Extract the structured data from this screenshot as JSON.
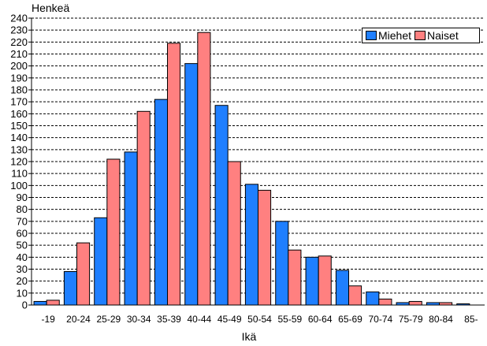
{
  "chart_data": {
    "type": "bar",
    "ylabel": "Henkeä",
    "xlabel": "Ikä",
    "categories": [
      "-19",
      "20-24",
      "25-29",
      "30-34",
      "35-39",
      "40-44",
      "45-49",
      "50-54",
      "55-59",
      "60-64",
      "65-69",
      "70-74",
      "75-79",
      "80-84",
      "85-"
    ],
    "series": [
      {
        "name": "Miehet",
        "color": "#1f7fff",
        "values": [
          3,
          28,
          73,
          128,
          172,
          202,
          167,
          101,
          70,
          40,
          29,
          11,
          2,
          2,
          1
        ]
      },
      {
        "name": "Naiset",
        "color": "#ff8080",
        "values": [
          4,
          52,
          122,
          162,
          219,
          228,
          120,
          96,
          46,
          41,
          16,
          5,
          3,
          2,
          0
        ]
      }
    ],
    "ylim": [
      0,
      240
    ],
    "ytick_step": 10,
    "grid": true,
    "legend_position": "top-right"
  }
}
